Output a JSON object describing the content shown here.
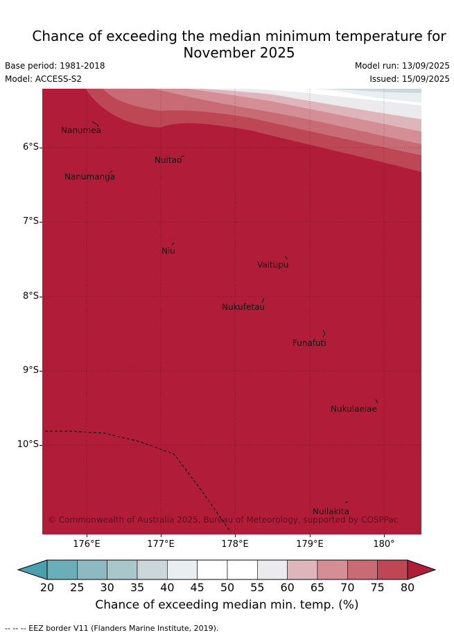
{
  "title_line1": "Chance of exceeding the median minimum temperature for",
  "title_line2": "November 2025",
  "base_period": "Base period: 1981-2018",
  "model": "Model: ACCESS-S2",
  "model_run": "Model run: 13/09/2025",
  "issued": "Issued: 15/09/2025",
  "lat_labels": [
    "6°S",
    "7°S",
    "8°S",
    "9°S",
    "10°S"
  ],
  "lon_labels": [
    "176°E",
    "177°E",
    "178°E",
    "179°E",
    "180°"
  ],
  "places": [
    "Nanumea",
    "Nuitao",
    "Nanumanga",
    "Niu",
    "Vaitupu",
    "Nukufetau",
    "Funafuti",
    "Nukulaelae",
    "Nuilakita"
  ],
  "copyright": "© Commonwealth of Australia 2025, Bureau of Meteorology, supported by COSPPac",
  "colorbar": {
    "ticks": [
      "20",
      "25",
      "30",
      "35",
      "40",
      "45",
      "50",
      "55",
      "60",
      "65",
      "70",
      "75",
      "80"
    ],
    "colors": [
      "#6aaeb9",
      "#8db9c3",
      "#a9c6ca",
      "#cbd7db",
      "#e9eff1",
      "#ffffff",
      "#ffffff",
      "#ebebed",
      "#deb5bb",
      "#d38e96",
      "#c96b75",
      "#be4756",
      "#b11d39"
    ],
    "label": "Chance of exceeding median min. temp. (%)"
  },
  "footer": "-- -- -- EEZ border V11 (Flanders Marine Institute, 2019)."
}
